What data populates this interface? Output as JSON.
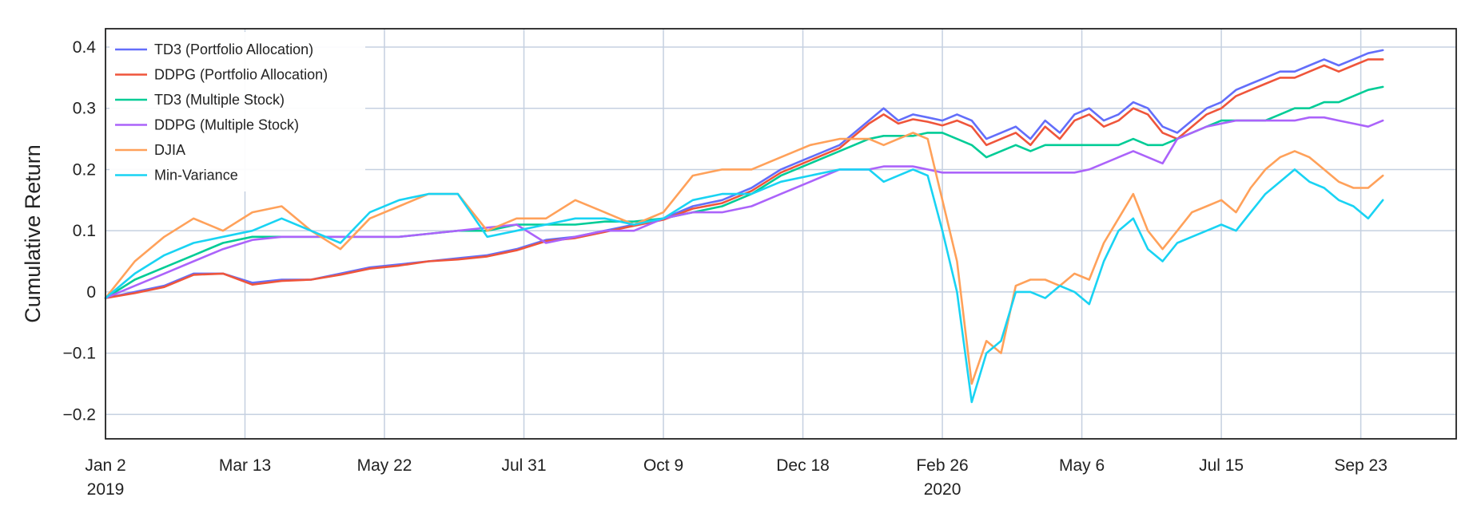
{
  "chart_data": {
    "type": "line",
    "title": "",
    "xlabel": "",
    "ylabel": "Cumulative Return",
    "xlim": [
      0,
      184
    ],
    "ylim": [
      -0.24,
      0.43
    ],
    "yticks": [
      -0.2,
      -0.1,
      0,
      0.1,
      0.2,
      0.3,
      0.4
    ],
    "ytick_labels": [
      "−0.2",
      "−0.1",
      "0",
      "0.1",
      "0.2",
      "0.3",
      "0.4"
    ],
    "xticks": [
      {
        "x": 0,
        "label": "Jan 2",
        "sub": "2019"
      },
      {
        "x": 19,
        "label": "Mar 13",
        "sub": ""
      },
      {
        "x": 38,
        "label": "May 22",
        "sub": ""
      },
      {
        "x": 57,
        "label": "Jul 31",
        "sub": ""
      },
      {
        "x": 76,
        "label": "Oct 9",
        "sub": ""
      },
      {
        "x": 95,
        "label": "Dec 18",
        "sub": ""
      },
      {
        "x": 114,
        "label": "Feb 26",
        "sub": "2020"
      },
      {
        "x": 133,
        "label": "May 6",
        "sub": ""
      },
      {
        "x": 152,
        "label": "Jul 15",
        "sub": ""
      },
      {
        "x": 171,
        "label": "Sep 23",
        "sub": ""
      }
    ],
    "grid": true,
    "legend_position": "top-left",
    "x_unit": "weeks since Jan 2 2019",
    "series": [
      {
        "name": "TD3 (Portfolio Allocation)",
        "color": "#636efa",
        "x": [
          0,
          4,
          8,
          12,
          16,
          20,
          24,
          28,
          32,
          36,
          40,
          44,
          48,
          52,
          56,
          60,
          64,
          68,
          72,
          76,
          80,
          84,
          88,
          92,
          96,
          100,
          104,
          106,
          108,
          110,
          112,
          114,
          116,
          118,
          120,
          122,
          124,
          126,
          128,
          130,
          132,
          134,
          136,
          138,
          140,
          142,
          144,
          146,
          148,
          150,
          152,
          154,
          156,
          158,
          160,
          162,
          164,
          166,
          168,
          170,
          172,
          174
        ],
        "y": [
          -0.01,
          0.0,
          0.01,
          0.03,
          0.03,
          0.015,
          0.02,
          0.02,
          0.03,
          0.04,
          0.045,
          0.05,
          0.055,
          0.06,
          0.07,
          0.085,
          0.09,
          0.1,
          0.11,
          0.12,
          0.14,
          0.15,
          0.17,
          0.2,
          0.22,
          0.24,
          0.28,
          0.3,
          0.28,
          0.29,
          0.285,
          0.28,
          0.29,
          0.28,
          0.25,
          0.26,
          0.27,
          0.25,
          0.28,
          0.26,
          0.29,
          0.3,
          0.28,
          0.29,
          0.31,
          0.3,
          0.27,
          0.26,
          0.28,
          0.3,
          0.31,
          0.33,
          0.34,
          0.35,
          0.36,
          0.36,
          0.37,
          0.38,
          0.37,
          0.38,
          0.39,
          0.395
        ]
      },
      {
        "name": "DDPG (Portfolio Allocation)",
        "color": "#ef553b",
        "x": [
          0,
          4,
          8,
          12,
          16,
          20,
          24,
          28,
          32,
          36,
          40,
          44,
          48,
          52,
          56,
          60,
          64,
          68,
          72,
          76,
          80,
          84,
          88,
          92,
          96,
          100,
          104,
          106,
          108,
          110,
          112,
          114,
          116,
          118,
          120,
          122,
          124,
          126,
          128,
          130,
          132,
          134,
          136,
          138,
          140,
          142,
          144,
          146,
          148,
          150,
          152,
          154,
          156,
          158,
          160,
          162,
          164,
          166,
          168,
          170,
          172,
          174
        ],
        "y": [
          -0.01,
          -0.002,
          0.008,
          0.028,
          0.03,
          0.012,
          0.018,
          0.02,
          0.028,
          0.038,
          0.043,
          0.05,
          0.053,
          0.058,
          0.068,
          0.083,
          0.088,
          0.098,
          0.108,
          0.118,
          0.136,
          0.145,
          0.165,
          0.195,
          0.215,
          0.235,
          0.275,
          0.29,
          0.275,
          0.282,
          0.278,
          0.272,
          0.28,
          0.27,
          0.24,
          0.25,
          0.26,
          0.24,
          0.27,
          0.25,
          0.28,
          0.29,
          0.27,
          0.28,
          0.3,
          0.29,
          0.26,
          0.25,
          0.27,
          0.29,
          0.3,
          0.32,
          0.33,
          0.34,
          0.35,
          0.35,
          0.36,
          0.37,
          0.36,
          0.37,
          0.38,
          0.38
        ]
      },
      {
        "name": "TD3 (Multiple Stock)",
        "color": "#00cc96",
        "x": [
          0,
          4,
          8,
          12,
          16,
          20,
          24,
          28,
          32,
          36,
          40,
          44,
          48,
          52,
          56,
          60,
          64,
          68,
          72,
          76,
          80,
          84,
          88,
          92,
          96,
          100,
          104,
          106,
          108,
          110,
          112,
          114,
          116,
          118,
          120,
          122,
          124,
          126,
          128,
          130,
          132,
          134,
          136,
          138,
          140,
          142,
          144,
          146,
          148,
          150,
          152,
          154,
          156,
          158,
          160,
          162,
          164,
          166,
          168,
          170,
          172,
          174
        ],
        "y": [
          -0.01,
          0.02,
          0.04,
          0.06,
          0.08,
          0.09,
          0.09,
          0.09,
          0.09,
          0.09,
          0.09,
          0.095,
          0.1,
          0.1,
          0.11,
          0.11,
          0.11,
          0.115,
          0.115,
          0.12,
          0.13,
          0.14,
          0.16,
          0.19,
          0.21,
          0.23,
          0.25,
          0.255,
          0.255,
          0.255,
          0.26,
          0.26,
          0.25,
          0.24,
          0.22,
          0.23,
          0.24,
          0.23,
          0.24,
          0.24,
          0.24,
          0.24,
          0.24,
          0.24,
          0.25,
          0.24,
          0.24,
          0.25,
          0.26,
          0.27,
          0.28,
          0.28,
          0.28,
          0.28,
          0.29,
          0.3,
          0.3,
          0.31,
          0.31,
          0.32,
          0.33,
          0.335
        ]
      },
      {
        "name": "DDPG (Multiple Stock)",
        "color": "#ab63fa",
        "x": [
          0,
          4,
          8,
          12,
          16,
          20,
          24,
          28,
          32,
          36,
          40,
          44,
          48,
          52,
          56,
          60,
          64,
          68,
          72,
          76,
          80,
          84,
          88,
          92,
          96,
          100,
          104,
          106,
          108,
          110,
          112,
          114,
          116,
          118,
          120,
          122,
          124,
          126,
          128,
          130,
          132,
          134,
          136,
          138,
          140,
          142,
          144,
          146,
          148,
          150,
          152,
          154,
          156,
          158,
          160,
          162,
          164,
          166,
          168,
          170,
          172,
          174
        ],
        "y": [
          -0.01,
          0.01,
          0.03,
          0.05,
          0.07,
          0.085,
          0.09,
          0.09,
          0.09,
          0.09,
          0.09,
          0.095,
          0.1,
          0.105,
          0.11,
          0.08,
          0.09,
          0.1,
          0.1,
          0.12,
          0.13,
          0.13,
          0.14,
          0.16,
          0.18,
          0.2,
          0.2,
          0.205,
          0.205,
          0.205,
          0.2,
          0.195,
          0.195,
          0.195,
          0.195,
          0.195,
          0.195,
          0.195,
          0.195,
          0.195,
          0.195,
          0.2,
          0.21,
          0.22,
          0.23,
          0.22,
          0.21,
          0.25,
          0.26,
          0.27,
          0.275,
          0.28,
          0.28,
          0.28,
          0.28,
          0.28,
          0.285,
          0.285,
          0.28,
          0.275,
          0.27,
          0.28
        ]
      },
      {
        "name": "DJIA",
        "color": "#ffa15a",
        "x": [
          0,
          4,
          8,
          12,
          16,
          20,
          24,
          28,
          32,
          36,
          40,
          44,
          48,
          52,
          56,
          60,
          64,
          68,
          72,
          76,
          80,
          84,
          88,
          92,
          96,
          100,
          104,
          106,
          108,
          110,
          112,
          114,
          116,
          118,
          120,
          122,
          124,
          126,
          128,
          130,
          132,
          134,
          136,
          138,
          140,
          142,
          144,
          146,
          148,
          150,
          152,
          154,
          156,
          158,
          160,
          162,
          164,
          166,
          168,
          170,
          172,
          174
        ],
        "y": [
          -0.01,
          0.05,
          0.09,
          0.12,
          0.1,
          0.13,
          0.14,
          0.1,
          0.07,
          0.12,
          0.14,
          0.16,
          0.16,
          0.1,
          0.12,
          0.12,
          0.15,
          0.13,
          0.11,
          0.13,
          0.19,
          0.2,
          0.2,
          0.22,
          0.24,
          0.25,
          0.25,
          0.24,
          0.25,
          0.26,
          0.25,
          0.15,
          0.05,
          -0.15,
          -0.08,
          -0.1,
          0.01,
          0.02,
          0.02,
          0.01,
          0.03,
          0.02,
          0.08,
          0.12,
          0.16,
          0.1,
          0.07,
          0.1,
          0.13,
          0.14,
          0.15,
          0.13,
          0.17,
          0.2,
          0.22,
          0.23,
          0.22,
          0.2,
          0.18,
          0.17,
          0.17,
          0.19
        ]
      },
      {
        "name": "Min-Variance",
        "color": "#19d3f3",
        "x": [
          0,
          4,
          8,
          12,
          16,
          20,
          24,
          28,
          32,
          36,
          40,
          44,
          48,
          52,
          56,
          60,
          64,
          68,
          72,
          76,
          80,
          84,
          88,
          92,
          96,
          100,
          104,
          106,
          108,
          110,
          112,
          114,
          116,
          118,
          120,
          122,
          124,
          126,
          128,
          130,
          132,
          134,
          136,
          138,
          140,
          142,
          144,
          146,
          148,
          150,
          152,
          154,
          156,
          158,
          160,
          162,
          164,
          166,
          168,
          170,
          172,
          174
        ],
        "y": [
          -0.01,
          0.03,
          0.06,
          0.08,
          0.09,
          0.1,
          0.12,
          0.1,
          0.08,
          0.13,
          0.15,
          0.16,
          0.16,
          0.09,
          0.1,
          0.11,
          0.12,
          0.12,
          0.11,
          0.12,
          0.15,
          0.16,
          0.16,
          0.18,
          0.19,
          0.2,
          0.2,
          0.18,
          0.19,
          0.2,
          0.19,
          0.1,
          0.0,
          -0.18,
          -0.1,
          -0.08,
          0.0,
          0.0,
          -0.01,
          0.01,
          0.0,
          -0.02,
          0.05,
          0.1,
          0.12,
          0.07,
          0.05,
          0.08,
          0.09,
          0.1,
          0.11,
          0.1,
          0.13,
          0.16,
          0.18,
          0.2,
          0.18,
          0.17,
          0.15,
          0.14,
          0.12,
          0.15
        ]
      }
    ]
  }
}
